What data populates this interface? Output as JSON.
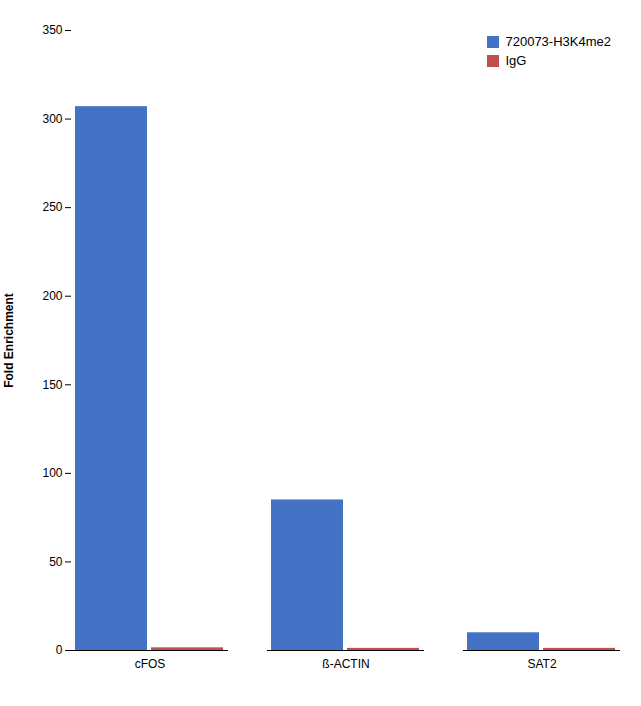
{
  "chart_data": {
    "type": "bar",
    "categories": [
      "cFOS",
      "ß-ACTIN",
      "SAT2"
    ],
    "series": [
      {
        "name": "720073-H3K4me2",
        "color": "#4472C4",
        "values": [
          307,
          85,
          10
        ]
      },
      {
        "name": "IgG",
        "color": "#C0504D",
        "values": [
          1.5,
          1.2,
          1.2
        ]
      }
    ],
    "ylabel": "Fold Enrichment",
    "ylim": [
      0,
      350
    ],
    "yticks": [
      0,
      50,
      100,
      150,
      200,
      250,
      300,
      350
    ],
    "grid": false,
    "legend": "upper right"
  }
}
